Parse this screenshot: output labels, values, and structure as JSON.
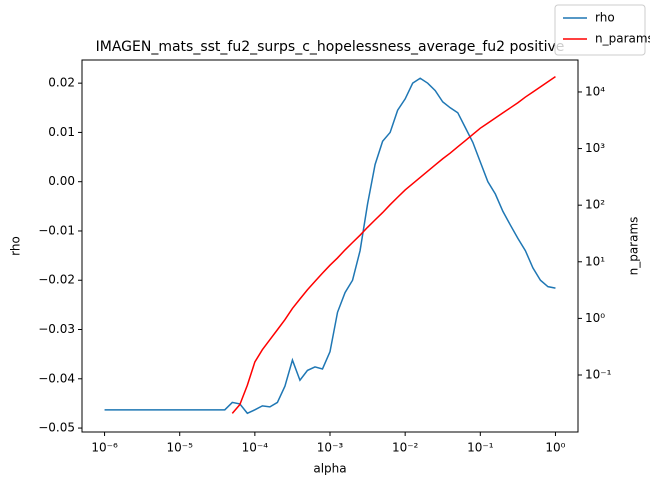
{
  "chart_data": {
    "type": "line",
    "title": "IMAGEN_mats_sst_fu2_surps_c_hopelessness_average_fu2 positive",
    "x_label": "alpha",
    "y_label": "rho",
    "y2_label": "n_params",
    "xscale": "log",
    "y2scale": "log",
    "legend": "upper right",
    "x": [
      1e-06,
      1.259e-06,
      1.585e-06,
      1.995e-06,
      2.512e-06,
      3.162e-06,
      3.981e-06,
      5.012e-06,
      6.31e-06,
      7.943e-06,
      1e-05,
      1.259e-05,
      1.585e-05,
      1.995e-05,
      2.512e-05,
      3.162e-05,
      3.981e-05,
      5.012e-05,
      6.31e-05,
      7.943e-05,
      0.0001,
      0.0001259,
      0.0001585,
      0.0001995,
      0.0002512,
      0.0003162,
      0.0003981,
      0.0005012,
      0.000631,
      0.0007943,
      0.001,
      0.001259,
      0.001585,
      0.001995,
      0.002512,
      0.003162,
      0.003981,
      0.005012,
      0.00631,
      0.007943,
      0.01,
      0.01259,
      0.01585,
      0.01995,
      0.02512,
      0.03162,
      0.03981,
      0.05012,
      0.0631,
      0.07943,
      0.1,
      0.1259,
      0.1585,
      0.1995,
      0.2512,
      0.3162,
      0.3981,
      0.5012,
      0.631,
      0.7943,
      1
    ],
    "series": [
      {
        "name": "rho",
        "color": "#1f77b4",
        "axis": "y",
        "values": [
          -0.0463,
          -0.0463,
          -0.0463,
          -0.0463,
          -0.0463,
          -0.0463,
          -0.0463,
          -0.0463,
          -0.0463,
          -0.0463,
          -0.0463,
          -0.0463,
          -0.0463,
          -0.0463,
          -0.0463,
          -0.0463,
          -0.0463,
          -0.0448,
          -0.0451,
          -0.047,
          -0.0463,
          -0.0455,
          -0.0457,
          -0.0448,
          -0.0415,
          -0.0362,
          -0.0403,
          -0.0383,
          -0.0376,
          -0.038,
          -0.0345,
          -0.0265,
          -0.0225,
          -0.02,
          -0.014,
          -0.0045,
          0.0035,
          0.0082,
          0.01,
          0.0145,
          0.0168,
          0.02,
          0.021,
          0.02,
          0.0185,
          0.0162,
          0.015,
          0.014,
          0.011,
          0.008,
          0.004,
          0.0,
          -0.0025,
          -0.006,
          -0.0088,
          -0.0115,
          -0.014,
          -0.0175,
          -0.02,
          -0.0213,
          -0.0216
        ]
      },
      {
        "name": "n_params",
        "color": "#ff0000",
        "axis": "y2",
        "values": [
          null,
          null,
          null,
          null,
          null,
          null,
          null,
          null,
          null,
          null,
          null,
          null,
          null,
          null,
          null,
          null,
          null,
          0.021,
          0.03,
          0.066,
          0.17,
          0.28,
          0.42,
          0.63,
          0.95,
          1.5,
          2.2,
          3.2,
          4.5,
          6.3,
          8.7,
          11.7,
          16.2,
          21.9,
          29.5,
          40.7,
          55,
          74,
          102,
          138,
          186,
          240,
          309,
          398,
          513,
          661,
          832,
          1072,
          1380,
          1778,
          2291,
          2818,
          3467,
          4266,
          5248,
          6457,
          8128,
          10000,
          12300,
          15140,
          18620
        ]
      }
    ],
    "xlim": [
      5.01e-07,
      1.995
    ],
    "xticks": [
      {
        "value": 1e-06,
        "label": "10⁻⁶"
      },
      {
        "value": 1e-05,
        "label": "10⁻⁵"
      },
      {
        "value": 0.0001,
        "label": "10⁻⁴"
      },
      {
        "value": 0.001,
        "label": "10⁻³"
      },
      {
        "value": 0.01,
        "label": "10⁻²"
      },
      {
        "value": 0.1,
        "label": "10⁻¹"
      },
      {
        "value": 1,
        "label": "10⁰"
      }
    ],
    "ylim": [
      -0.0508,
      0.0247
    ],
    "yticks": [
      {
        "value": -0.05,
        "label": "−0.05"
      },
      {
        "value": -0.04,
        "label": "−0.04"
      },
      {
        "value": -0.03,
        "label": "−0.03"
      },
      {
        "value": -0.02,
        "label": "−0.02"
      },
      {
        "value": -0.01,
        "label": "−0.01"
      },
      {
        "value": 0,
        "label": "0.00"
      },
      0.01,
      0.02
    ],
    "y2lim": [
      0.00984,
      36700
    ],
    "y2ticks": [
      {
        "value": 0.1,
        "label": "10⁻¹"
      },
      {
        "value": 1,
        "label": "10⁰"
      },
      {
        "value": 10,
        "label": "10¹"
      },
      {
        "value": 100,
        "label": "10²"
      },
      {
        "value": 1000,
        "label": "10³"
      },
      {
        "value": 10000,
        "label": "10⁴"
      }
    ]
  }
}
